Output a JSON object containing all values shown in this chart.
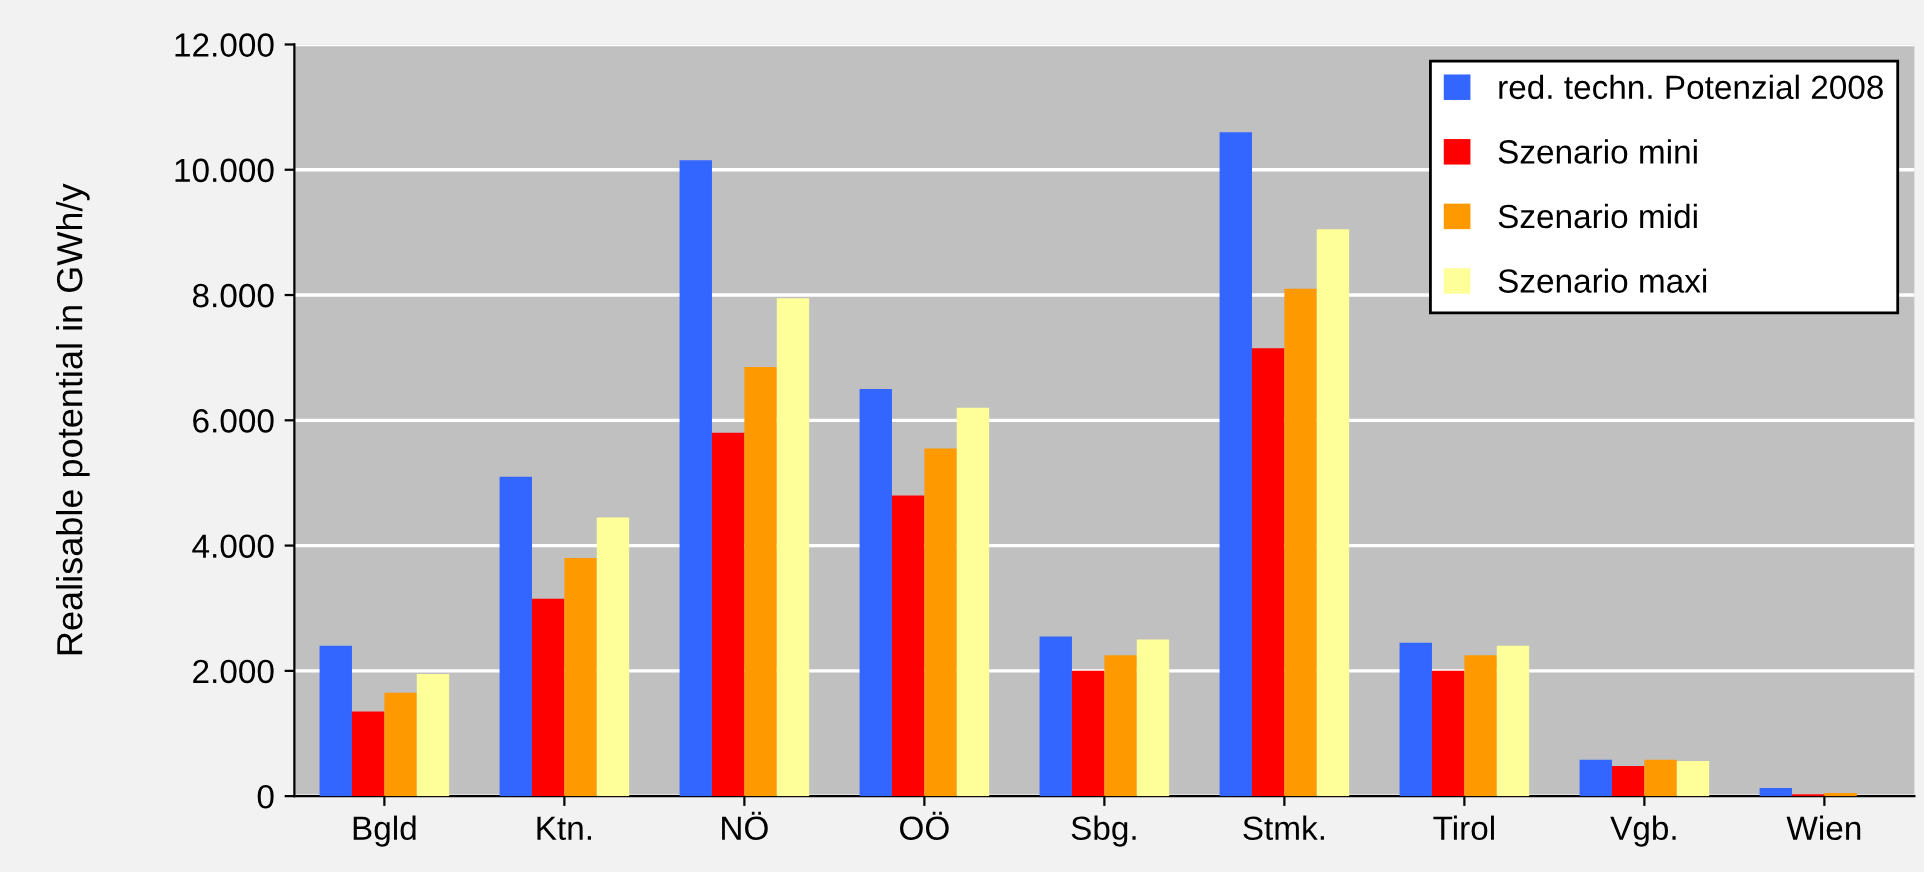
{
  "chart_data": {
    "type": "bar",
    "ylabel": "Realisable potential in GWh/y",
    "categories": [
      "Bgld",
      "Ktn.",
      "NÖ",
      "OÖ",
      "Sbg.",
      "Stmk.",
      "Tirol",
      "Vgb.",
      "Wien"
    ],
    "series": [
      {
        "name": "red. techn. Potenzial 2008",
        "color": "#3366ff",
        "values": [
          2400,
          5100,
          10150,
          6500,
          2550,
          10600,
          2450,
          580,
          130
        ]
      },
      {
        "name": "Szenario mini",
        "color": "#ff0000",
        "values": [
          1350,
          3150,
          5800,
          4800,
          2000,
          7150,
          2000,
          480,
          30
        ]
      },
      {
        "name": "Szenario midi",
        "color": "#ff9900",
        "values": [
          1650,
          3800,
          6850,
          5550,
          2250,
          8100,
          2250,
          580,
          50
        ]
      },
      {
        "name": "Szenario maxi",
        "color": "#ffff99",
        "values": [
          1950,
          4450,
          7950,
          6200,
          2500,
          9050,
          2400,
          560,
          null
        ]
      }
    ],
    "ylim": [
      0,
      12000
    ],
    "yticks": [
      0,
      {
        "value": 2000,
        "label": "2.000"
      },
      {
        "value": 4000,
        "label": "4.000"
      },
      {
        "value": 6000,
        "label": "6.000"
      },
      {
        "value": 8000,
        "label": "8.000"
      },
      {
        "value": 10000,
        "label": "10.000"
      },
      {
        "value": 12000,
        "label": "12.000"
      }
    ],
    "grid": "y",
    "legend": "top right"
  }
}
